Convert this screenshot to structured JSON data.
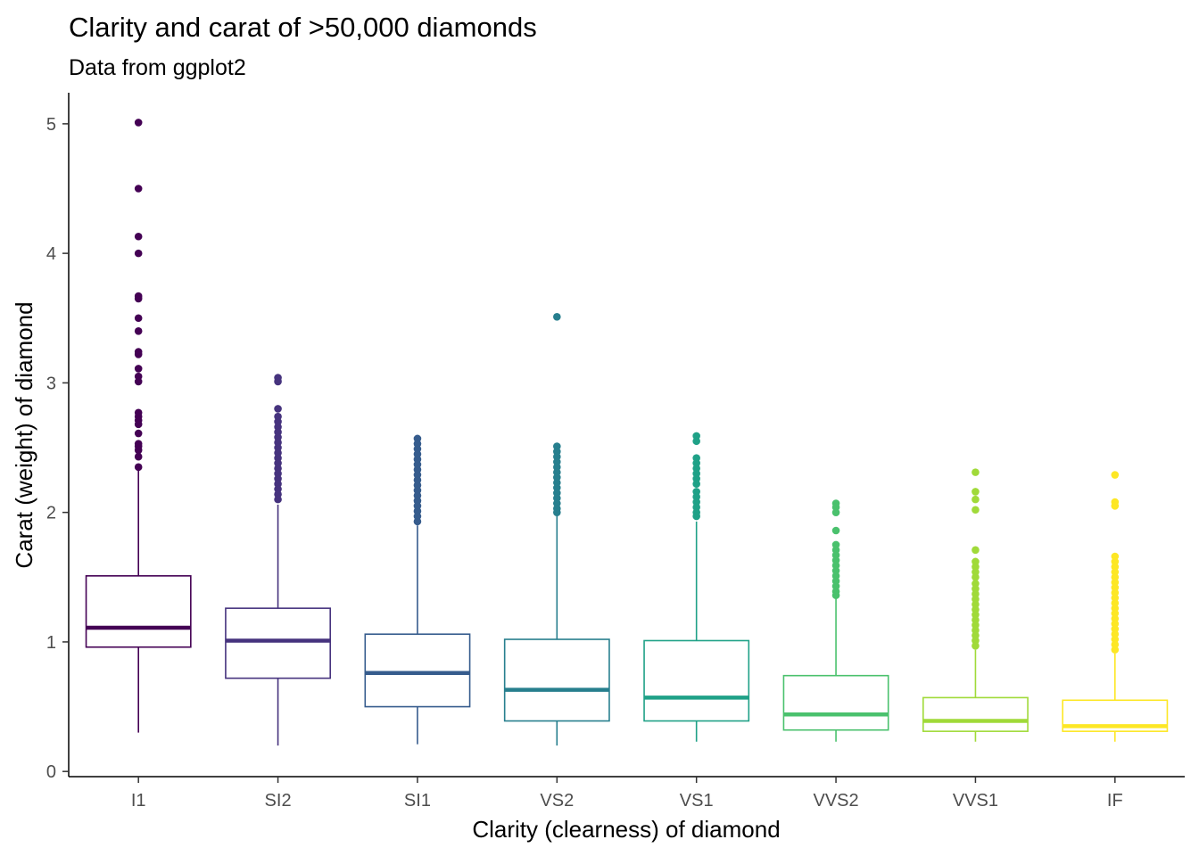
{
  "chart_data": {
    "type": "box",
    "title": "Clarity and carat of >50,000 diamonds",
    "subtitle": "Data from ggplot2",
    "xlabel": "Clarity (clearness) of diamond",
    "ylabel": "Carat (weight) of diamond",
    "ylim": [
      -0.04,
      5.24
    ],
    "yticks": [
      0,
      1,
      2,
      3,
      4,
      5
    ],
    "grid": false,
    "legend": "none",
    "categories": [
      "I1",
      "SI2",
      "SI1",
      "VS2",
      "VS1",
      "VVS2",
      "VVS1",
      "IF"
    ],
    "colors": [
      "#440154",
      "#46337e",
      "#365c8d",
      "#277f8e",
      "#1fa187",
      "#4ac16d",
      "#a0da39",
      "#fde725"
    ],
    "boxes": [
      {
        "min": 0.3,
        "q1": 0.96,
        "median": 1.11,
        "q3": 1.51,
        "max": 2.33,
        "outliers": [
          5.01,
          4.5,
          4.13,
          4.0,
          3.67,
          3.65,
          3.5,
          3.4,
          3.24,
          3.22,
          3.11,
          3.05,
          3.01,
          2.77,
          2.74,
          2.71,
          2.68,
          2.61,
          2.53,
          2.51,
          2.48,
          2.43,
          2.35
        ]
      },
      {
        "min": 0.2,
        "q1": 0.72,
        "median": 1.01,
        "q3": 1.26,
        "max": 2.06,
        "outliers": [
          3.04,
          3.01,
          2.8,
          2.74,
          2.7,
          2.66,
          2.62,
          2.58,
          2.54,
          2.5,
          2.46,
          2.42,
          2.38,
          2.34,
          2.3,
          2.26,
          2.22,
          2.18,
          2.14,
          2.1
        ]
      },
      {
        "min": 0.21,
        "q1": 0.5,
        "median": 0.76,
        "q3": 1.06,
        "max": 1.9,
        "outliers": [
          2.57,
          2.53,
          2.49,
          2.45,
          2.41,
          2.37,
          2.33,
          2.29,
          2.25,
          2.21,
          2.17,
          2.13,
          2.09,
          2.05,
          2.01,
          1.97,
          1.93
        ]
      },
      {
        "min": 0.2,
        "q1": 0.39,
        "median": 0.63,
        "q3": 1.02,
        "max": 1.99,
        "outliers": [
          3.51,
          2.51,
          2.47,
          2.43,
          2.39,
          2.35,
          2.31,
          2.27,
          2.23,
          2.19,
          2.15,
          2.11,
          2.07,
          2.03,
          2.0
        ]
      },
      {
        "min": 0.23,
        "q1": 0.39,
        "median": 0.57,
        "q3": 1.01,
        "max": 1.93,
        "outliers": [
          2.59,
          2.55,
          2.42,
          2.38,
          2.34,
          2.3,
          2.26,
          2.22,
          2.16,
          2.12,
          2.08,
          2.04,
          2.0,
          1.97
        ]
      },
      {
        "min": 0.23,
        "q1": 0.32,
        "median": 0.44,
        "q3": 0.74,
        "max": 1.34,
        "outliers": [
          2.07,
          2.04,
          2.0,
          1.86,
          1.75,
          1.71,
          1.67,
          1.63,
          1.59,
          1.55,
          1.51,
          1.47,
          1.43,
          1.39,
          1.36
        ]
      },
      {
        "min": 0.23,
        "q1": 0.31,
        "median": 0.39,
        "q3": 0.57,
        "max": 0.94,
        "outliers": [
          2.31,
          2.16,
          2.1,
          2.02,
          1.71,
          1.62,
          1.58,
          1.54,
          1.5,
          1.45,
          1.41,
          1.37,
          1.33,
          1.29,
          1.25,
          1.21,
          1.17,
          1.13,
          1.09,
          1.05,
          1.01,
          0.97
        ]
      },
      {
        "min": 0.23,
        "q1": 0.31,
        "median": 0.35,
        "q3": 0.55,
        "max": 0.91,
        "outliers": [
          2.29,
          2.08,
          2.05,
          1.66,
          1.62,
          1.58,
          1.54,
          1.5,
          1.46,
          1.42,
          1.38,
          1.34,
          1.3,
          1.26,
          1.22,
          1.18,
          1.14,
          1.1,
          1.06,
          1.02,
          0.98,
          0.94
        ]
      }
    ]
  }
}
